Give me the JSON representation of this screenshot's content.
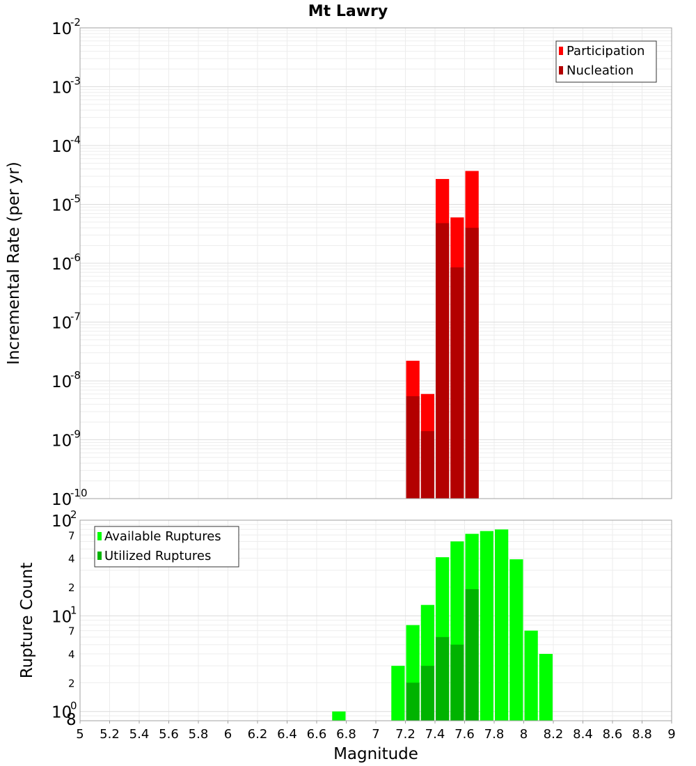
{
  "chart_data": [
    {
      "type": "bar",
      "title": "Mt Lawry",
      "xlabel": "",
      "ylabel": "Incremental Rate (per yr)",
      "yscale": "log",
      "ylim": [
        1e-10,
        0.01
      ],
      "xlim": [
        5,
        9
      ],
      "bar_width": 0.1,
      "y_ticks": [
        {
          "base": "10",
          "exp": "-2",
          "value": 0.01
        },
        {
          "base": "10",
          "exp": "-3",
          "value": 0.001
        },
        {
          "base": "10",
          "exp": "-4",
          "value": 0.0001
        },
        {
          "base": "10",
          "exp": "-5",
          "value": 1e-05
        },
        {
          "base": "10",
          "exp": "-6",
          "value": 1e-06
        },
        {
          "base": "10",
          "exp": "-7",
          "value": 1e-07
        },
        {
          "base": "10",
          "exp": "-8",
          "value": 1e-08
        },
        {
          "base": "10",
          "exp": "-9",
          "value": 1e-09
        },
        {
          "base": "10",
          "exp": "-10",
          "value": 1e-10
        }
      ],
      "legend": {
        "position": "top-right"
      },
      "series": [
        {
          "name": "Participation",
          "color": "#ff0000",
          "x": [
            7.25,
            7.35,
            7.45,
            7.55,
            7.65
          ],
          "values": [
            2.2e-08,
            6e-09,
            2.7e-05,
            6e-06,
            3.7e-05
          ]
        },
        {
          "name": "Nucleation",
          "color": "#b30000",
          "x": [
            7.25,
            7.35,
            7.45,
            7.55,
            7.65
          ],
          "values": [
            5.5e-09,
            1.4e-09,
            4.8e-06,
            8.5e-07,
            4e-06
          ]
        }
      ]
    },
    {
      "type": "bar",
      "title": "",
      "xlabel": "Magnitude",
      "ylabel": "Rupture Count",
      "yscale": "log",
      "ylim": [
        0.8,
        100
      ],
      "xlim": [
        5,
        9
      ],
      "bar_width": 0.1,
      "x_ticks": [
        "5",
        "5.2",
        "5.4",
        "5.6",
        "5.8",
        "6",
        "6.2",
        "6.4",
        "6.6",
        "6.8",
        "7",
        "7.2",
        "7.4",
        "7.6",
        "7.8",
        "8",
        "8.2",
        "8.4",
        "8.6",
        "8.8",
        "9"
      ],
      "y_ticks": [
        {
          "base": "10",
          "exp": "2",
          "value": 100
        },
        {
          "base": "10",
          "exp": "1",
          "value": 10
        },
        {
          "base": "10",
          "exp": "0",
          "value": 1
        }
      ],
      "y_minor_labels": [
        {
          "label": "7",
          "value": 70
        },
        {
          "label": "4",
          "value": 40
        },
        {
          "label": "2",
          "value": 20
        },
        {
          "label": "7",
          "value": 7
        },
        {
          "label": "4",
          "value": 4
        },
        {
          "label": "2",
          "value": 2
        },
        {
          "label": "8",
          "value": 0.8
        }
      ],
      "legend": {
        "position": "top-left"
      },
      "series": [
        {
          "name": "Available Ruptures",
          "color": "#00ff00",
          "x": [
            6.75,
            7.15,
            7.25,
            7.35,
            7.45,
            7.55,
            7.65,
            7.75,
            7.85,
            7.95,
            8.05,
            8.15
          ],
          "values": [
            1,
            3,
            8,
            13,
            41,
            60,
            72,
            77,
            80,
            39,
            7,
            4
          ]
        },
        {
          "name": "Utilized Ruptures",
          "color": "#00b300",
          "x": [
            7.25,
            7.35,
            7.45,
            7.55,
            7.65
          ],
          "values": [
            2,
            3,
            6,
            5,
            19
          ]
        }
      ]
    }
  ]
}
